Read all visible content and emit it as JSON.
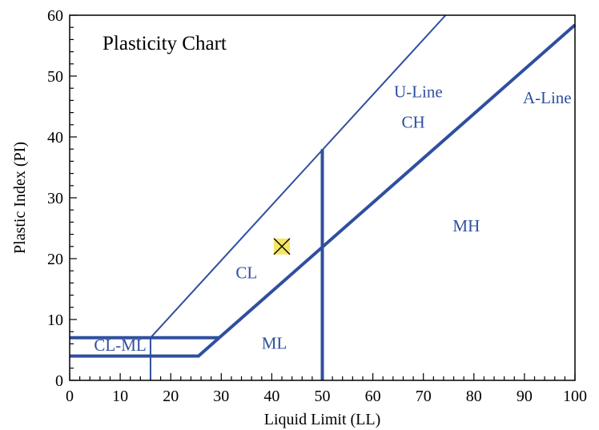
{
  "chart_data": {
    "type": "line",
    "title": "Plasticity Chart",
    "xlabel": "Liquid Limit (LL)",
    "ylabel": "Plastic Index (PI)",
    "xlim": [
      0,
      100
    ],
    "ylim": [
      0,
      60
    ],
    "x_ticks": [
      0,
      10,
      20,
      30,
      40,
      50,
      60,
      70,
      80,
      90,
      100
    ],
    "y_ticks": [
      0,
      10,
      20,
      30,
      40,
      50,
      60
    ],
    "x_minor_step": 2,
    "y_minor_step": 2,
    "grid": false,
    "line_color": "#2f4f9f",
    "series": [
      {
        "name": "U-Line",
        "points": [
          [
            16,
            7
          ],
          [
            74.4,
            60
          ]
        ],
        "weight": "thin"
      },
      {
        "name": "A-Line",
        "points": [
          [
            29.6,
            7
          ],
          [
            100,
            58.4
          ]
        ],
        "weight": "thick"
      },
      {
        "name": "",
        "points": [
          [
            0,
            7
          ],
          [
            29.6,
            7
          ]
        ],
        "weight": "thick"
      },
      {
        "name": "",
        "points": [
          [
            0,
            4
          ],
          [
            25.5,
            4
          ],
          [
            29.6,
            7
          ]
        ],
        "weight": "thick"
      },
      {
        "name": "",
        "points": [
          [
            16,
            0
          ],
          [
            16,
            7
          ]
        ],
        "weight": "thin"
      },
      {
        "name": "",
        "points": [
          [
            50,
            0
          ],
          [
            50,
            38
          ]
        ],
        "weight": "thick"
      }
    ],
    "region_labels": [
      {
        "text": "U-Line",
        "x": 69,
        "y": 46.5
      },
      {
        "text": "A-Line",
        "x": 94.5,
        "y": 45.5
      },
      {
        "text": "CH",
        "x": 68,
        "y": 41.5
      },
      {
        "text": "MH",
        "x": 78.5,
        "y": 24.5
      },
      {
        "text": "CL",
        "x": 35,
        "y": 16.8
      },
      {
        "text": "ML",
        "x": 40.5,
        "y": 5.2
      },
      {
        "text": "CL-ML",
        "x": 10,
        "y": 4.9
      }
    ],
    "marker": {
      "x": 42,
      "y": 22,
      "fill": "#f5e663",
      "stroke": "#000000"
    }
  }
}
